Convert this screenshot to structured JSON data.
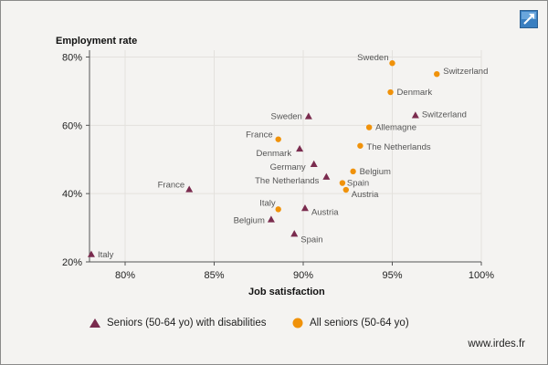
{
  "chart_data": {
    "type": "scatter",
    "xlabel": "Job satisfaction",
    "ylabel": "Employment rate",
    "xlim": [
      0.78,
      1.0
    ],
    "ylim": [
      0.2,
      0.82
    ],
    "xticks": [
      0.8,
      0.85,
      0.9,
      0.95,
      1.0
    ],
    "xtick_labels": [
      "80%",
      "85%",
      "90%",
      "95%",
      "100%"
    ],
    "yticks": [
      0.2,
      0.4,
      0.6,
      0.8
    ],
    "ytick_labels": [
      "20%",
      "40%",
      "60%",
      "80%"
    ],
    "grid": true,
    "legend_position": "bottom",
    "series": [
      {
        "name": "Seniors (50-64 yo) with disabilities",
        "marker": "triangle",
        "color": "#7a2b4e",
        "points": [
          {
            "label": "Italy",
            "x": 0.781,
            "y": 0.222
          },
          {
            "label": "France",
            "x": 0.836,
            "y": 0.412
          },
          {
            "label": "Sweden",
            "x": 0.903,
            "y": 0.626
          },
          {
            "label": "Denmark",
            "x": 0.898,
            "y": 0.531
          },
          {
            "label": "Germany",
            "x": 0.906,
            "y": 0.486
          },
          {
            "label": "The Netherlands",
            "x": 0.913,
            "y": 0.449
          },
          {
            "label": "Austria",
            "x": 0.901,
            "y": 0.357
          },
          {
            "label": "Belgium",
            "x": 0.882,
            "y": 0.324
          },
          {
            "label": "Spain",
            "x": 0.895,
            "y": 0.282
          },
          {
            "label": "Switzerland",
            "x": 0.963,
            "y": 0.629
          }
        ]
      },
      {
        "name": "All seniors (50-64 yo)",
        "marker": "circle",
        "color": "#f0920a",
        "points": [
          {
            "label": "Sweden",
            "x": 0.95,
            "y": 0.782
          },
          {
            "label": "Switzerland",
            "x": 0.975,
            "y": 0.75
          },
          {
            "label": "Denmark",
            "x": 0.949,
            "y": 0.697
          },
          {
            "label": "Allemagne",
            "x": 0.937,
            "y": 0.594
          },
          {
            "label": "France",
            "x": 0.886,
            "y": 0.559
          },
          {
            "label": "The Netherlands",
            "x": 0.932,
            "y": 0.54
          },
          {
            "label": "Belgium",
            "x": 0.928,
            "y": 0.465
          },
          {
            "label": "Spain",
            "x": 0.922,
            "y": 0.431
          },
          {
            "label": "Austria",
            "x": 0.924,
            "y": 0.411
          },
          {
            "label": "Italy",
            "x": 0.886,
            "y": 0.354
          }
        ]
      }
    ]
  },
  "source": "www.irdes.fr",
  "icons": {
    "expand": "expand-arrow-icon"
  }
}
